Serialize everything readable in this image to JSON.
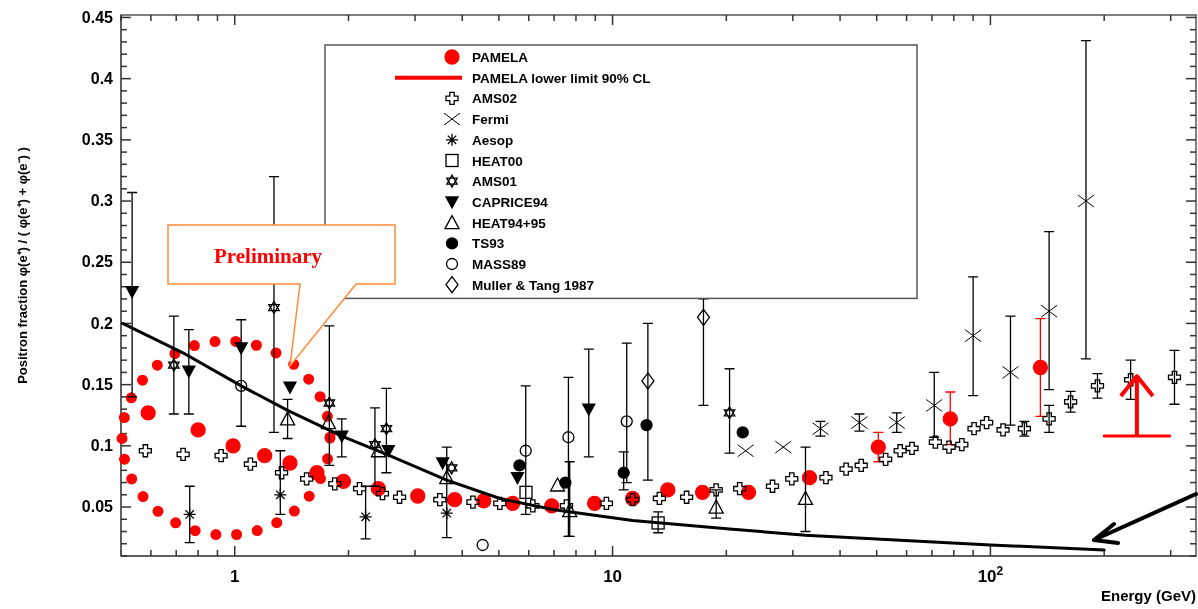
{
  "chart_data": {
    "type": "scatter",
    "xlabel": "Energy (GeV)",
    "ylabel": "Positron fraction φ(e⁺) / ( φ(e⁺) + φ(e⁻) )",
    "log": "x",
    "grid": false,
    "legend": "top",
    "annotations": [
      "Preliminary"
    ],
    "xlim": [
      0.5,
      350
    ],
    "ylim": [
      0.01,
      0.452
    ],
    "xticks": [
      {
        "value": 0.5,
        "label": null
      },
      {
        "value": 0.6,
        "label": null
      },
      {
        "value": 0.7,
        "label": null
      },
      {
        "value": 0.8,
        "label": null
      },
      {
        "value": 0.9,
        "label": null
      },
      1,
      {
        "value": 2,
        "label": null
      },
      {
        "value": 3,
        "label": null
      },
      {
        "value": 4,
        "label": null
      },
      {
        "value": 5,
        "label": null
      },
      {
        "value": 6,
        "label": null
      },
      {
        "value": 7,
        "label": null
      },
      {
        "value": 8,
        "label": null
      },
      {
        "value": 9,
        "label": null
      },
      10,
      {
        "value": 20,
        "label": null
      },
      {
        "value": 30,
        "label": null
      },
      {
        "value": 40,
        "label": null
      },
      {
        "value": 50,
        "label": null
      },
      {
        "value": 60,
        "label": null
      },
      {
        "value": 70,
        "label": null
      },
      {
        "value": 80,
        "label": null
      },
      {
        "value": 90,
        "label": null
      },
      {
        "value": 100,
        "label": "10$^{2}$"
      },
      {
        "value": 200,
        "label": null
      },
      {
        "value": 300,
        "label": null
      }
    ],
    "yticks": [
      {
        "value": 0.01,
        "label": null
      },
      {
        "value": 0.02,
        "label": null
      },
      {
        "value": 0.03,
        "label": null
      },
      {
        "value": 0.04,
        "label": null
      },
      0.05,
      {
        "value": 0.06,
        "label": null
      },
      {
        "value": 0.07,
        "label": null
      },
      {
        "value": 0.08,
        "label": null
      },
      {
        "value": 0.09,
        "label": null
      },
      0.1,
      {
        "value": 0.11,
        "label": null
      },
      {
        "value": 0.12,
        "label": null
      },
      {
        "value": 0.13,
        "label": null
      },
      {
        "value": 0.14,
        "label": null
      },
      0.15,
      {
        "value": 0.16,
        "label": null
      },
      {
        "value": 0.17,
        "label": null
      },
      {
        "value": 0.18,
        "label": null
      },
      {
        "value": 0.19,
        "label": null
      },
      0.2,
      {
        "value": 0.21,
        "label": null
      },
      {
        "value": 0.22,
        "label": null
      },
      {
        "value": 0.23,
        "label": null
      },
      {
        "value": 0.24,
        "label": null
      },
      0.25,
      {
        "value": 0.26,
        "label": null
      },
      {
        "value": 0.27,
        "label": null
      },
      {
        "value": 0.28,
        "label": null
      },
      {
        "value": 0.29,
        "label": null
      },
      0.3,
      {
        "value": 0.31,
        "label": null
      },
      {
        "value": 0.32,
        "label": null
      },
      {
        "value": 0.33,
        "label": null
      },
      {
        "value": 0.34,
        "label": null
      },
      0.35,
      {
        "value": 0.36,
        "label": null
      },
      {
        "value": 0.37,
        "label": null
      },
      {
        "value": 0.38,
        "label": null
      },
      {
        "value": 0.39,
        "label": null
      },
      0.4,
      {
        "value": 0.41,
        "label": null
      },
      {
        "value": 0.42,
        "label": null
      },
      {
        "value": 0.43,
        "label": null
      },
      {
        "value": 0.44,
        "label": null
      },
      0.45
    ],
    "series": [
      {
        "name": "PAMELA",
        "marker": "circle",
        "color": "#ff0000",
        "x": [
          0.59,
          0.8,
          0.99,
          1.2,
          1.4,
          1.65,
          1.94,
          2.4,
          3.05,
          3.82,
          4.56,
          5.44,
          6.9,
          8.96,
          11.3,
          14,
          17.3,
          22.9,
          33.2,
          50.5,
          78.3,
          135.6
        ],
        "values": [
          0.127,
          0.113,
          0.1,
          0.092,
          0.086,
          0.078,
          0.071,
          0.065,
          0.059,
          0.056,
          0.055,
          0.053,
          0.051,
          0.053,
          0.057,
          0.064,
          0.062,
          0.062,
          0.074,
          0.099,
          0.122,
          0.164
        ],
        "errors": [
          null,
          null,
          null,
          null,
          null,
          null,
          null,
          null,
          null,
          null,
          null,
          null,
          null,
          null,
          null,
          null,
          null,
          null,
          null,
          [
            0.087,
            0.111
          ],
          [
            0.101,
            0.144
          ],
          [
            0.124,
            0.204
          ]
        ]
      },
      {
        "name": "PAMELA lower limit 90% CL",
        "type": "line",
        "color": "#ff0000",
        "x": [
          200,
          298
        ],
        "values": [
          0.108,
          0.108
        ]
      },
      {
        "name": "AMS02",
        "marker": "cross",
        "color": "#000000",
        "x": [
          0.58,
          0.73,
          0.92,
          1.1,
          1.33,
          1.55,
          1.84,
          2.14,
          2.46,
          2.73,
          3.49,
          4.27,
          5.03,
          6.15,
          7.55,
          9.63,
          11.3,
          13.3,
          15.7,
          18.8,
          21.7,
          26.5,
          29.8,
          36.7,
          41.5,
          45.5,
          52.8,
          57.7,
          62,
          71.5,
          77.7,
          84,
          90.5,
          97.7,
          108,
          123,
          143,
          163,
          192,
          235,
          307
        ],
        "values": [
          0.096,
          0.093,
          0.092,
          0.085,
          0.078,
          0.073,
          0.069,
          0.065,
          0.061,
          0.058,
          0.056,
          0.054,
          0.053,
          0.051,
          0.051,
          0.053,
          0.056,
          0.057,
          0.058,
          0.064,
          0.065,
          0.067,
          0.073,
          0.074,
          0.081,
          0.084,
          0.089,
          0.096,
          0.098,
          0.103,
          0.099,
          0.101,
          0.114,
          0.119,
          0.113,
          0.114,
          0.122,
          0.136,
          0.149,
          0.154,
          0.156
        ],
        "errors": [
          null,
          null,
          null,
          null,
          null,
          null,
          null,
          null,
          null,
          null,
          null,
          null,
          null,
          null,
          null,
          null,
          null,
          null,
          null,
          null,
          null,
          null,
          null,
          null,
          null,
          null,
          null,
          null,
          null,
          null,
          null,
          null,
          null,
          null,
          null,
          0.006,
          0.011,
          0.0085,
          0.01,
          0.016,
          0.022
        ]
      },
      {
        "name": "Fermi",
        "marker": "cross",
        "color": "#000000",
        "x": [
          22.5,
          28.3,
          35.5,
          45,
          56.5,
          71,
          90,
          113,
          143,
          179
        ],
        "values": [
          0.096,
          0.099,
          0.114,
          0.119,
          0.119,
          0.133,
          0.19,
          0.16,
          0.21,
          0.3
        ],
        "errors": [
          null,
          null,
          0.006,
          0.007,
          0.008,
          [
            0.107,
            0.16
          ],
          [
            0.141,
            0.238
          ],
          [
            0.117,
            0.206
          ],
          [
            0.146,
            0.275
          ],
          [
            0.171,
            0.431
          ]
        ]
      },
      {
        "name": "Aesop",
        "marker": "cross",
        "color": "#000000",
        "x": [
          0.76,
          1.32,
          2.22,
          3.64
        ],
        "values": [
          0.044,
          0.06,
          0.042,
          0.045
        ],
        "errors": [
          [
            0.021,
            0.067
          ],
          [
            0.044,
            0.096
          ],
          [
            0.024,
            0.067
          ],
          [
            0.025,
            0.099
          ]
        ]
      },
      {
        "name": "HEAT00",
        "marker": "square",
        "color": "#000000",
        "x": [
          5.9,
          13.2
        ],
        "values": [
          0.062,
          0.037
        ],
        "errors": [
          null,
          [
            0.029,
            0.046
          ]
        ]
      },
      {
        "name": "AMS01",
        "marker": "star",
        "color": "#000000",
        "x": [
          0.69,
          1.27,
          1.78,
          2.35,
          2.52,
          3.75,
          20.4
        ],
        "values": [
          0.166,
          0.213,
          0.135,
          0.101,
          0.114,
          0.082,
          0.127
        ],
        "errors": [
          [
            0.126,
            0.206
          ],
          [
            0.111,
            0.32
          ],
          [
            0.084,
            0.198
          ],
          [
            0.067,
            0.131
          ],
          [
            0.078,
            0.147
          ],
          null,
          [
            0.094,
            0.163
          ]
        ]
      },
      {
        "name": "CAPRICE94",
        "marker": "triangle",
        "color": "#000000",
        "x": [
          0.535,
          0.756,
          1.04,
          1.4,
          1.92,
          2.55,
          3.55,
          5.6,
          8.65
        ],
        "values": [
          0.226,
          0.161,
          0.18,
          0.148,
          0.108,
          0.096,
          0.086,
          0.074,
          0.13
        ],
        "errors": [
          [
            0.14,
            0.307
          ],
          [
            0.126,
            0.195
          ],
          [
            0.116,
            0.203
          ],
          null,
          [
            0.091,
            0.122
          ],
          null,
          null,
          null,
          [
            0.091,
            0.179
          ]
        ]
      },
      {
        "name": "HEAT94+95",
        "marker": "triangle",
        "color": "#000000",
        "x": [
          1.38,
          1.77,
          2.4,
          3.64,
          7.15,
          7.7,
          18.8,
          32.4
        ],
        "values": [
          0.122,
          0.119,
          0.096,
          0.074,
          0.068,
          0.047,
          0.05,
          0.057
        ],
        "errors": [
          [
            0.106,
            0.138
          ],
          null,
          null,
          null,
          null,
          [
            0.026,
            0.087
          ],
          [
            0.041,
            0.064
          ],
          [
            0.03,
            0.099
          ]
        ]
      },
      {
        "name": "TS93",
        "marker": "circle",
        "color": "#000000",
        "x": [
          5.67,
          7.5,
          10.7,
          12.3,
          22.1
        ],
        "values": [
          0.084,
          0.07,
          0.078,
          0.117,
          0.111
        ],
        "errors": [
          null,
          null,
          [
            0.064,
            0.095
          ],
          null,
          null
        ]
      },
      {
        "name": "MASS89",
        "marker": "circle",
        "color": "#000000",
        "x": [
          1.04,
          4.53,
          5.89,
          7.64,
          10.9
        ],
        "values": [
          0.149,
          0.019,
          0.096,
          0.107,
          0.12
        ],
        "errors": [
          null,
          null,
          [
            0.044,
            0.149
          ],
          [
            0.026,
            0.156
          ],
          [
            0.07,
            0.184
          ]
        ]
      },
      {
        "name": "Muller & Tang 1987",
        "marker": "diamond",
        "color": "#000000",
        "x": [
          12.4,
          17.4
        ],
        "values": [
          0.153,
          0.205
        ],
        "errors": [
          [
            0.072,
            0.2
          ],
          [
            0.133,
            0.22
          ]
        ]
      },
      {
        "type": "line",
        "color": "#000000",
        "x": [
          0.505,
          0.729,
          1.04,
          1.38,
          1.92,
          2.57,
          3.64,
          5.03,
          6.94,
          11.3,
          20.4,
          32.4,
          100,
          200
        ],
        "values": [
          0.2,
          0.176,
          0.149,
          0.129,
          0.108,
          0.092,
          0.072,
          0.057,
          0.048,
          0.039,
          0.032,
          0.027,
          0.019,
          0.015
        ]
      }
    ]
  }
}
